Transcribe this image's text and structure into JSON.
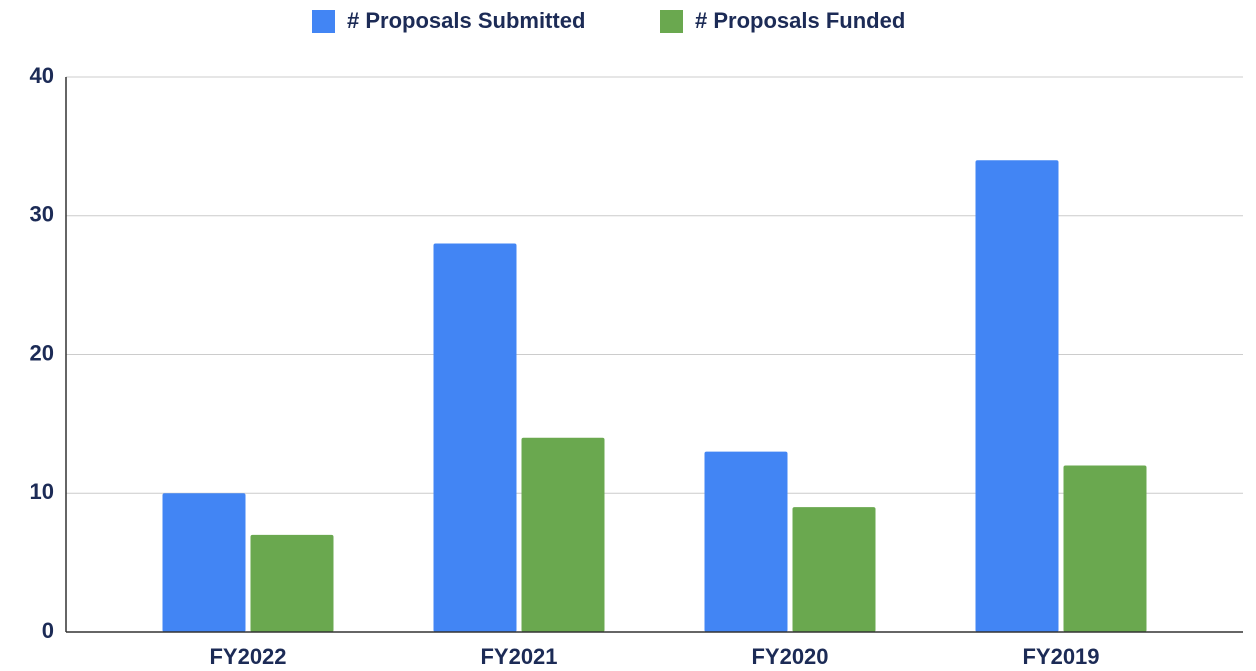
{
  "chart_data": {
    "type": "bar",
    "categories": [
      "FY2022",
      "FY2021",
      "FY2020",
      "FY2019"
    ],
    "series": [
      {
        "name": "# Proposals Submitted",
        "color": "#4285f4",
        "values": [
          10,
          28,
          13,
          34
        ]
      },
      {
        "name": "# Proposals Funded",
        "color": "#6aa84f",
        "values": [
          7,
          14,
          9,
          12
        ]
      }
    ],
    "ylim": [
      0,
      40
    ],
    "yticks": [
      0,
      10,
      20,
      30,
      40
    ],
    "grid": true,
    "legend": "top"
  }
}
